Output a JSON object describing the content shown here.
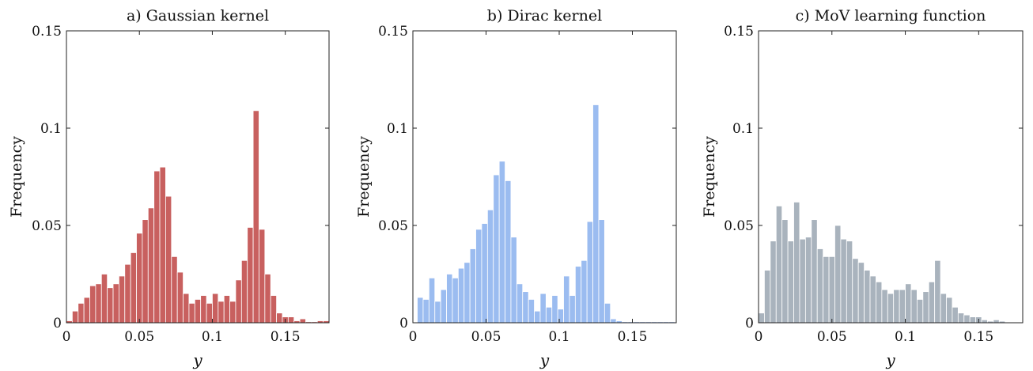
{
  "chart_data": [
    {
      "type": "bar",
      "title": "a) Gaussian kernel",
      "xlabel": "y",
      "ylabel": "Frequency",
      "xlim": [
        0,
        0.18
      ],
      "ylim": [
        0,
        0.15
      ],
      "xticks": [
        "0",
        "0.05",
        "0.1",
        "0.15"
      ],
      "yticks": [
        "0",
        "0.05",
        "0.1",
        "0.15"
      ],
      "color": "#c8605f",
      "bin_width": 0.004,
      "bin_start": 0,
      "values": [
        0.001,
        0.006,
        0.01,
        0.013,
        0.019,
        0.02,
        0.025,
        0.018,
        0.02,
        0.024,
        0.03,
        0.036,
        0.046,
        0.053,
        0.059,
        0.078,
        0.08,
        0.065,
        0.034,
        0.026,
        0.015,
        0.01,
        0.012,
        0.014,
        0.01,
        0.015,
        0.011,
        0.014,
        0.011,
        0.022,
        0.032,
        0.049,
        0.109,
        0.048,
        0.025,
        0.014,
        0.005,
        0.003,
        0.003,
        0.001,
        0.002,
        0.0005,
        0.0005,
        0.001,
        0.001,
        0.0005,
        0.001
      ]
    },
    {
      "type": "bar",
      "title": "b) Dirac kernel",
      "xlabel": "y",
      "ylabel": "Frequency",
      "xlim": [
        0,
        0.18
      ],
      "ylim": [
        0,
        0.15
      ],
      "xticks": [
        "0",
        "0.05",
        "0.1",
        "0.15"
      ],
      "yticks": [
        "0",
        "0.05",
        "0.1",
        "0.15"
      ],
      "color": "#9bbcf0",
      "bin_width": 0.004,
      "bin_start": 0.003,
      "values": [
        0.013,
        0.012,
        0.023,
        0.011,
        0.017,
        0.025,
        0.023,
        0.028,
        0.031,
        0.038,
        0.048,
        0.051,
        0.058,
        0.076,
        0.083,
        0.073,
        0.044,
        0.02,
        0.016,
        0.012,
        0.006,
        0.015,
        0.008,
        0.014,
        0.007,
        0.024,
        0.014,
        0.029,
        0.032,
        0.052,
        0.112,
        0.053,
        0.01,
        0.002,
        0.001,
        0.0005,
        0.0005,
        0.0005,
        0.0005,
        0.0005,
        0.0005,
        0.0005,
        0.0005,
        0.0005
      ]
    },
    {
      "type": "bar",
      "title": "c) MoV learning function",
      "xlabel": "y",
      "ylabel": "Frequency",
      "xlim": [
        0,
        0.18
      ],
      "ylim": [
        0,
        0.15
      ],
      "xticks": [
        "0",
        "0.05",
        "0.1",
        "0.15"
      ],
      "yticks": [
        "0",
        "0.05",
        "0.1",
        "0.15"
      ],
      "color": "#a9b3bd",
      "bin_width": 0.004,
      "bin_start": 0,
      "values": [
        0.005,
        0.027,
        0.042,
        0.06,
        0.053,
        0.042,
        0.062,
        0.043,
        0.044,
        0.053,
        0.038,
        0.034,
        0.034,
        0.05,
        0.043,
        0.042,
        0.033,
        0.031,
        0.027,
        0.024,
        0.021,
        0.017,
        0.015,
        0.017,
        0.017,
        0.02,
        0.017,
        0.012,
        0.016,
        0.021,
        0.032,
        0.015,
        0.013,
        0.008,
        0.005,
        0.004,
        0.003,
        0.003,
        0.0015,
        0.0008,
        0.0015,
        0.0008
      ]
    }
  ]
}
